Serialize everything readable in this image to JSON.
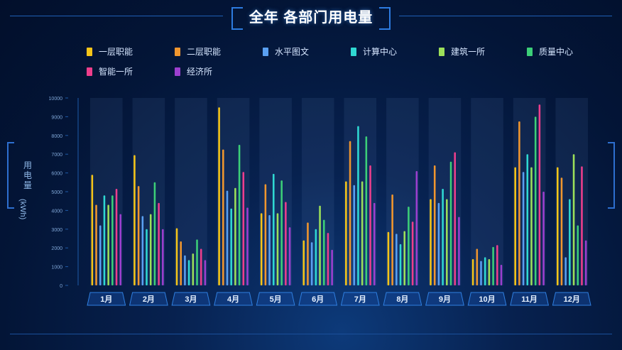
{
  "title": "全年 各部门用电量",
  "chart_data": {
    "type": "bar",
    "categories": [
      "1月",
      "2月",
      "3月",
      "4月",
      "5月",
      "6月",
      "7月",
      "8月",
      "9月",
      "10月",
      "11月",
      "12月"
    ],
    "ylabel": "用电量",
    "yunit": "(kWh)",
    "ylim": [
      0,
      10000
    ],
    "yticks": [
      0,
      1000,
      2000,
      3000,
      4000,
      5000,
      6000,
      7000,
      8000,
      9000,
      10000
    ],
    "legend_position": "top",
    "series": [
      {
        "name": "一层职能",
        "color": "#f5c518",
        "values": [
          5900,
          6950,
          3050,
          9500,
          3850,
          2400,
          5550,
          2850,
          4600,
          1400,
          6300,
          6300
        ]
      },
      {
        "name": "二层职能",
        "color": "#f0962e",
        "values": [
          4300,
          5300,
          2350,
          7250,
          5400,
          3350,
          7700,
          4850,
          6400,
          1950,
          8750,
          5750
        ]
      },
      {
        "name": "水平图文",
        "color": "#5aa0f2",
        "values": [
          3200,
          3700,
          1600,
          5050,
          3750,
          2300,
          5350,
          2750,
          4400,
          1300,
          6050,
          1500
        ]
      },
      {
        "name": "计算中心",
        "color": "#2fd8d2",
        "values": [
          4800,
          3000,
          1350,
          4100,
          5950,
          3000,
          8500,
          2200,
          5150,
          1500,
          7000,
          4600
        ]
      },
      {
        "name": "建筑一所",
        "color": "#9ce05a",
        "values": [
          4300,
          3800,
          1700,
          5200,
          3850,
          4250,
          5550,
          2900,
          4600,
          1400,
          6300,
          7000
        ]
      },
      {
        "name": "质量中心",
        "color": "#3ccf78",
        "values": [
          4800,
          5500,
          2450,
          7500,
          5600,
          3500,
          7950,
          4200,
          6600,
          2050,
          9000,
          3200
        ]
      },
      {
        "name": "智能一所",
        "color": "#ee3e8c",
        "values": [
          5150,
          4400,
          1950,
          6050,
          4450,
          2800,
          6400,
          3400,
          7100,
          2150,
          9650,
          6350
        ]
      },
      {
        "name": "经济所",
        "color": "#9c3fcf",
        "values": [
          3800,
          3000,
          1350,
          4150,
          3100,
          1900,
          4400,
          6100,
          3650,
          1100,
          5000,
          2400
        ]
      }
    ]
  }
}
